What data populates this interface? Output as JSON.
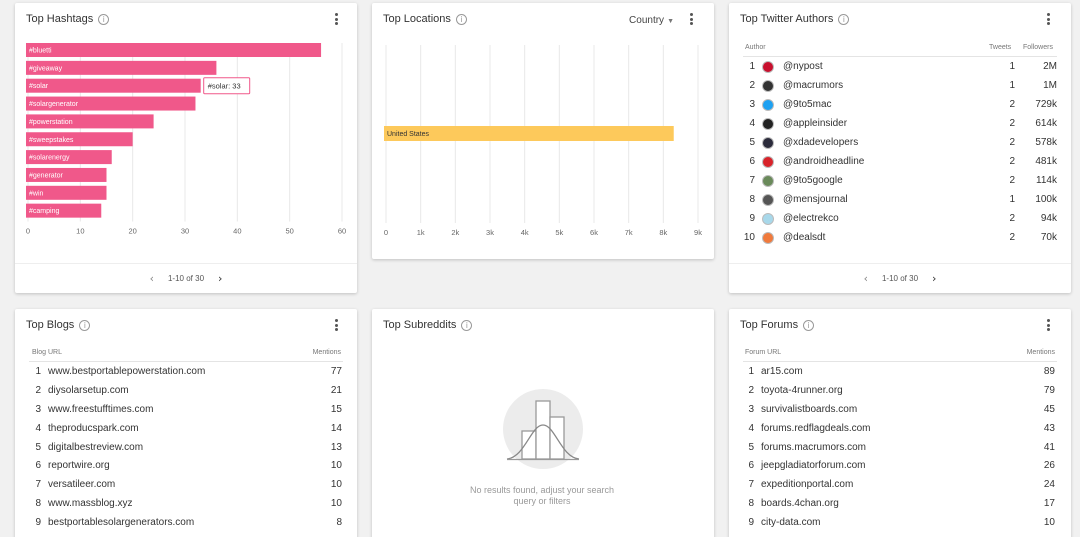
{
  "hashtags": {
    "title": "Top Hashtags",
    "bars": [
      {
        "label": "#bluetti",
        "value": 56
      },
      {
        "label": "#giveaway",
        "value": 36
      },
      {
        "label": "#solar",
        "value": 33
      },
      {
        "label": "#solargenerator",
        "value": 32
      },
      {
        "label": "#powerstation",
        "value": 24
      },
      {
        "label": "#sweepstakes",
        "value": 20
      },
      {
        "label": "#solarenergy",
        "value": 16
      },
      {
        "label": "#generator",
        "value": 15
      },
      {
        "label": "#win",
        "value": 15
      },
      {
        "label": "#camping",
        "value": 14
      }
    ],
    "ticks": [
      "0",
      "10",
      "20",
      "30",
      "40",
      "50",
      "60"
    ],
    "xmax": 60,
    "tooltip": {
      "label": "#solar",
      "value": "33"
    },
    "bar_color": "#f0588a",
    "pager": "1-10 of 30"
  },
  "locations": {
    "title": "Top Locations",
    "dropdown": "Country",
    "bars": [
      {
        "label": "United States",
        "value": 8300
      }
    ],
    "ticks": [
      "0",
      "1k",
      "2k",
      "3k",
      "4k",
      "5k",
      "6k",
      "7k",
      "8k",
      "9k"
    ],
    "xmax": 9000,
    "bar_color": "#fdc95b"
  },
  "twitter": {
    "title": "Top Twitter Authors",
    "headers": {
      "author": "Author",
      "tweets": "Tweets",
      "followers": "Followers"
    },
    "rows": [
      {
        "n": "1",
        "handle": "@nypost",
        "tweets": "1",
        "followers": "2M",
        "color": "#c8102e"
      },
      {
        "n": "2",
        "handle": "@macrumors",
        "tweets": "1",
        "followers": "1M",
        "color": "#333333"
      },
      {
        "n": "3",
        "handle": "@9to5mac",
        "tweets": "2",
        "followers": "729k",
        "color": "#1da1f2"
      },
      {
        "n": "4",
        "handle": "@appleinsider",
        "tweets": "2",
        "followers": "614k",
        "color": "#222222"
      },
      {
        "n": "5",
        "handle": "@xdadevelopers",
        "tweets": "2",
        "followers": "578k",
        "color": "#2b2b3b"
      },
      {
        "n": "6",
        "handle": "@androidheadline",
        "tweets": "2",
        "followers": "481k",
        "color": "#d8232a"
      },
      {
        "n": "7",
        "handle": "@9to5google",
        "tweets": "2",
        "followers": "114k",
        "color": "#6a8a5a"
      },
      {
        "n": "8",
        "handle": "@mensjournal",
        "tweets": "1",
        "followers": "100k",
        "color": "#555555"
      },
      {
        "n": "9",
        "handle": "@electrekco",
        "tweets": "2",
        "followers": "94k",
        "color": "#a8d8ea"
      },
      {
        "n": "10",
        "handle": "@dealsdt",
        "tweets": "2",
        "followers": "70k",
        "color": "#f07a3c"
      }
    ],
    "pager": "1-10 of 30"
  },
  "blogs": {
    "title": "Top Blogs",
    "headers": {
      "url": "Blog URL",
      "mentions": "Mentions"
    },
    "rows": [
      {
        "n": "1",
        "url": "www.bestportablepowerstation.com",
        "mentions": "77"
      },
      {
        "n": "2",
        "url": "diysolarsetup.com",
        "mentions": "21"
      },
      {
        "n": "3",
        "url": "www.freestufftimes.com",
        "mentions": "15"
      },
      {
        "n": "4",
        "url": "theproducspark.com",
        "mentions": "14"
      },
      {
        "n": "5",
        "url": "digitalbestreview.com",
        "mentions": "13"
      },
      {
        "n": "6",
        "url": "reportwire.org",
        "mentions": "10"
      },
      {
        "n": "7",
        "url": "versatileer.com",
        "mentions": "10"
      },
      {
        "n": "8",
        "url": "www.massblog.xyz",
        "mentions": "10"
      },
      {
        "n": "9",
        "url": "bestportablesolargenerators.com",
        "mentions": "8"
      }
    ]
  },
  "subreddits": {
    "title": "Top Subreddits",
    "empty_line1": "No results found, adjust your search",
    "empty_line2": "query or filters"
  },
  "forums": {
    "title": "Top Forums",
    "headers": {
      "url": "Forum URL",
      "mentions": "Mentions"
    },
    "rows": [
      {
        "n": "1",
        "url": "ar15.com",
        "mentions": "89"
      },
      {
        "n": "2",
        "url": "toyota-4runner.org",
        "mentions": "79"
      },
      {
        "n": "3",
        "url": "survivalistboards.com",
        "mentions": "45"
      },
      {
        "n": "4",
        "url": "forums.redflagdeals.com",
        "mentions": "43"
      },
      {
        "n": "5",
        "url": "forums.macrumors.com",
        "mentions": "41"
      },
      {
        "n": "6",
        "url": "jeepgladiatorforum.com",
        "mentions": "26"
      },
      {
        "n": "7",
        "url": "expeditionportal.com",
        "mentions": "24"
      },
      {
        "n": "8",
        "url": "boards.4chan.org",
        "mentions": "17"
      },
      {
        "n": "9",
        "url": "city-data.com",
        "mentions": "10"
      }
    ]
  },
  "chart_data": [
    {
      "type": "bar",
      "title": "Top Hashtags",
      "orientation": "horizontal",
      "categories": [
        "#bluetti",
        "#giveaway",
        "#solar",
        "#solargenerator",
        "#powerstation",
        "#sweepstakes",
        "#solarenergy",
        "#generator",
        "#win",
        "#camping"
      ],
      "values": [
        56,
        36,
        33,
        32,
        24,
        20,
        16,
        15,
        15,
        14
      ],
      "xlim": [
        0,
        60
      ],
      "grid": true
    },
    {
      "type": "bar",
      "title": "Top Locations",
      "orientation": "horizontal",
      "categories": [
        "United States"
      ],
      "values": [
        8300
      ],
      "xlim": [
        0,
        9000
      ],
      "grid": true
    }
  ]
}
